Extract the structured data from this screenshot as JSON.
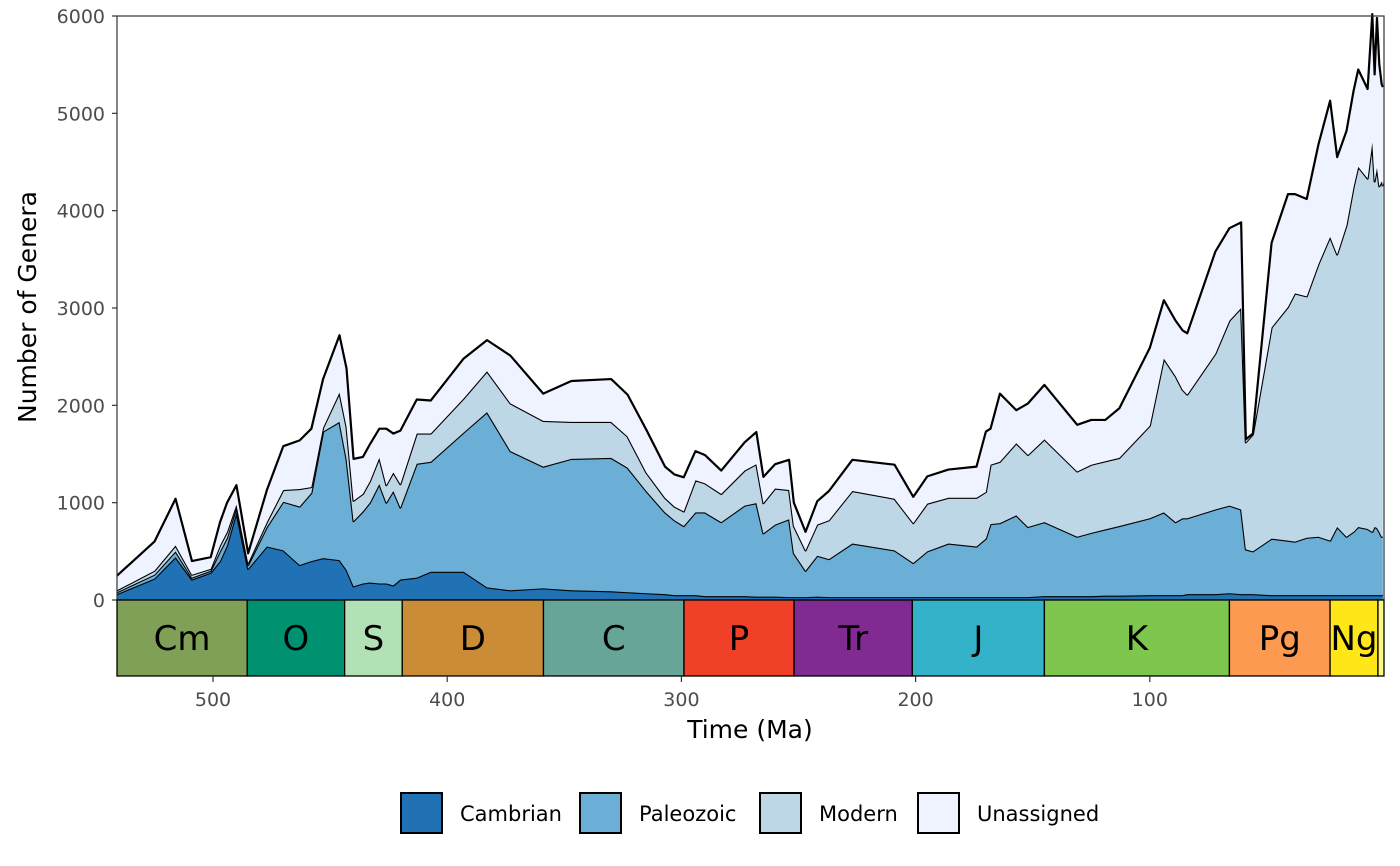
{
  "chart_data": {
    "type": "area",
    "stacked": true,
    "xlabel": "Time (Ma)",
    "ylabel": "Number of Genera",
    "xlim": [
      541,
      0
    ],
    "ylim": [
      0,
      6000
    ],
    "x_reversed": true,
    "x_ticks": [
      500,
      400,
      300,
      200,
      100
    ],
    "y_ticks": [
      0,
      1000,
      2000,
      3000,
      4000,
      5000,
      6000
    ],
    "grid": false,
    "legend_position": "bottom",
    "x": [
      541,
      525,
      516,
      509,
      501,
      497,
      494,
      490,
      485,
      477,
      470,
      463,
      458,
      453,
      446,
      443,
      440,
      436,
      433,
      429,
      426,
      423,
      420,
      413,
      407,
      393,
      383,
      373,
      359,
      347,
      330,
      323,
      315,
      307,
      303,
      299,
      294,
      290,
      283,
      273,
      268,
      265,
      260,
      254,
      252,
      247,
      242,
      237,
      227,
      209,
      201,
      195,
      186,
      174,
      170,
      168,
      164,
      157,
      152,
      145,
      131,
      125,
      119,
      113,
      100,
      94,
      89,
      86,
      84,
      72,
      66,
      61,
      59,
      56,
      48,
      41,
      38,
      33,
      28,
      23,
      20,
      16,
      13,
      11,
      7,
      5,
      4,
      3,
      2,
      1,
      0.5
    ],
    "series": [
      {
        "name": "Cambrian",
        "color": "#2171b5",
        "values": [
          60,
          220,
          440,
          210,
          280,
          400,
          560,
          900,
          320,
          550,
          510,
          360,
          400,
          430,
          410,
          310,
          140,
          170,
          180,
          170,
          170,
          150,
          210,
          230,
          290,
          290,
          130,
          100,
          120,
          100,
          90,
          80,
          70,
          60,
          50,
          50,
          50,
          40,
          40,
          40,
          35,
          35,
          35,
          30,
          30,
          30,
          35,
          30,
          30,
          30,
          30,
          30,
          30,
          30,
          30,
          30,
          30,
          30,
          30,
          40,
          40,
          40,
          45,
          45,
          50,
          50,
          50,
          50,
          60,
          60,
          70,
          60,
          60,
          60,
          50,
          50,
          50,
          50,
          50,
          50,
          50,
          50,
          50,
          50,
          50,
          50,
          50,
          50,
          50,
          50,
          50
        ]
      },
      {
        "name": "Paleozoic",
        "color": "#6baed6",
        "values": [
          20,
          40,
          60,
          20,
          20,
          100,
          80,
          50,
          40,
          200,
          500,
          600,
          700,
          1300,
          1420,
          1140,
          670,
          740,
          820,
          1020,
          830,
          970,
          740,
          1170,
          1130,
          1430,
          1800,
          1430,
          1250,
          1350,
          1370,
          1280,
          1050,
          840,
          770,
          710,
          850,
          860,
          760,
          930,
          960,
          650,
          740,
          800,
          450,
          270,
          420,
          390,
          550,
          480,
          350,
          470,
          550,
          520,
          600,
          750,
          760,
          840,
          720,
          760,
          610,
          650,
          680,
          715,
          790,
          850,
          750,
          790,
          780,
          870,
          900,
          870,
          460,
          440,
          580,
          560,
          550,
          590,
          600,
          560,
          700,
          600,
          650,
          700,
          680,
          650,
          700,
          690,
          650,
          600,
          600
        ]
      },
      {
        "name": "Modern",
        "color": "#bdd7e7",
        "values": [
          20,
          40,
          60,
          30,
          20,
          60,
          60,
          30,
          20,
          50,
          120,
          180,
          60,
          40,
          300,
          330,
          210,
          180,
          220,
          270,
          180,
          190,
          240,
          310,
          290,
          350,
          420,
          490,
          470,
          380,
          370,
          320,
          190,
          150,
          140,
          150,
          330,
          300,
          290,
          360,
          400,
          310,
          370,
          300,
          280,
          210,
          320,
          400,
          540,
          530,
          410,
          490,
          470,
          500,
          480,
          610,
          630,
          740,
          740,
          850,
          670,
          700,
          700,
          700,
          950,
          1580,
          1500,
          1320,
          1270,
          1600,
          1900,
          2070,
          1100,
          1200,
          2170,
          2400,
          2550,
          2480,
          2800,
          3120,
          2800,
          3200,
          3540,
          3700,
          3600,
          4000,
          3550,
          3700,
          3550,
          3650,
          3600
        ]
      },
      {
        "name": "Unassigned",
        "color": "#eff3ff",
        "values": [
          150,
          300,
          480,
          140,
          120,
          240,
          300,
          200,
          100,
          330,
          450,
          500,
          600,
          500,
          590,
          600,
          430,
          380,
          380,
          300,
          580,
          400,
          550,
          350,
          340,
          410,
          320,
          490,
          280,
          420,
          440,
          430,
          440,
          320,
          330,
          350,
          300,
          290,
          240,
          290,
          330,
          270,
          250,
          310,
          240,
          190,
          240,
          300,
          320,
          350,
          270,
          280,
          290,
          320,
          620,
          370,
          700,
          340,
          530,
          560,
          480,
          460,
          425,
          510,
          800,
          600,
          570,
          610,
          630,
          1050,
          950,
          880,
          30,
          10,
          870,
          1160,
          1020,
          1000,
          1230,
          1400,
          1000,
          970,
          990,
          1000,
          920,
          1320,
          1100,
          1540,
          1250,
          1000,
          1020
        ]
      }
    ],
    "periods": [
      {
        "label": "Cm",
        "start": 541,
        "end": 485.4,
        "color": "#7fa056"
      },
      {
        "label": "O",
        "start": 485.4,
        "end": 443.8,
        "color": "#009270"
      },
      {
        "label": "S",
        "start": 443.8,
        "end": 419.2,
        "color": "#b3e1b6"
      },
      {
        "label": "D",
        "start": 419.2,
        "end": 358.9,
        "color": "#cb8c37"
      },
      {
        "label": "C",
        "start": 358.9,
        "end": 298.9,
        "color": "#67a599"
      },
      {
        "label": "P",
        "start": 298.9,
        "end": 251.9,
        "color": "#f04028"
      },
      {
        "label": "Tr",
        "start": 251.9,
        "end": 201.4,
        "color": "#812b92"
      },
      {
        "label": "J",
        "start": 201.4,
        "end": 145,
        "color": "#34b2c9"
      },
      {
        "label": "K",
        "start": 145,
        "end": 66,
        "color": "#7fc64e"
      },
      {
        "label": "Pg",
        "start": 66,
        "end": 23.03,
        "color": "#fd9a52"
      },
      {
        "label": "Ng",
        "start": 23.03,
        "end": 2.58,
        "color": "#ffe619"
      },
      {
        "label": "",
        "start": 2.58,
        "end": 0,
        "color": "#f9f97f"
      }
    ]
  }
}
